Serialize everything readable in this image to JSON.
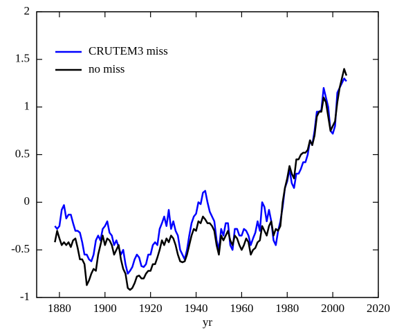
{
  "chart_data": {
    "type": "line",
    "x_label": "yr",
    "x": [
      1878,
      1879,
      1880,
      1881,
      1882,
      1883,
      1884,
      1885,
      1886,
      1887,
      1888,
      1889,
      1890,
      1891,
      1892,
      1893,
      1894,
      1895,
      1896,
      1897,
      1898,
      1899,
      1900,
      1901,
      1902,
      1903,
      1904,
      1905,
      1906,
      1907,
      1908,
      1909,
      1910,
      1911,
      1912,
      1913,
      1914,
      1915,
      1916,
      1917,
      1918,
      1919,
      1920,
      1921,
      1922,
      1923,
      1924,
      1925,
      1926,
      1927,
      1928,
      1929,
      1930,
      1931,
      1932,
      1933,
      1934,
      1935,
      1936,
      1937,
      1938,
      1939,
      1940,
      1941,
      1942,
      1943,
      1944,
      1945,
      1946,
      1947,
      1948,
      1949,
      1950,
      1951,
      1952,
      1953,
      1954,
      1955,
      1956,
      1957,
      1958,
      1959,
      1960,
      1961,
      1962,
      1963,
      1964,
      1965,
      1966,
      1967,
      1968,
      1969,
      1970,
      1971,
      1972,
      1973,
      1974,
      1975,
      1976,
      1977,
      1978,
      1979,
      1980,
      1981,
      1982,
      1983,
      1984,
      1985,
      1986,
      1987,
      1988,
      1989,
      1990,
      1991,
      1992,
      1993,
      1994,
      1995,
      1996,
      1997,
      1998,
      1999,
      2000,
      2001,
      2002,
      2003,
      2004,
      2005,
      2006
    ],
    "series": [
      {
        "name": "CRUTEM3 miss",
        "color": "#0000ff",
        "values": [
          -0.25,
          -0.28,
          -0.25,
          -0.08,
          -0.03,
          -0.17,
          -0.13,
          -0.13,
          -0.22,
          -0.3,
          -0.3,
          -0.32,
          -0.42,
          -0.55,
          -0.55,
          -0.6,
          -0.62,
          -0.55,
          -0.4,
          -0.35,
          -0.4,
          -0.28,
          -0.25,
          -0.2,
          -0.32,
          -0.35,
          -0.45,
          -0.4,
          -0.47,
          -0.55,
          -0.5,
          -0.65,
          -0.75,
          -0.72,
          -0.68,
          -0.6,
          -0.55,
          -0.58,
          -0.67,
          -0.68,
          -0.65,
          -0.55,
          -0.55,
          -0.45,
          -0.42,
          -0.45,
          -0.28,
          -0.22,
          -0.15,
          -0.25,
          -0.08,
          -0.28,
          -0.2,
          -0.3,
          -0.35,
          -0.5,
          -0.55,
          -0.6,
          -0.5,
          -0.35,
          -0.22,
          -0.15,
          -0.12,
          0.0,
          -0.02,
          0.1,
          0.12,
          0.0,
          -0.1,
          -0.15,
          -0.2,
          -0.4,
          -0.5,
          -0.28,
          -0.35,
          -0.22,
          -0.22,
          -0.45,
          -0.5,
          -0.28,
          -0.28,
          -0.35,
          -0.35,
          -0.28,
          -0.3,
          -0.35,
          -0.45,
          -0.38,
          -0.32,
          -0.2,
          -0.3,
          0.0,
          -0.05,
          -0.2,
          -0.08,
          -0.2,
          -0.4,
          -0.45,
          -0.3,
          -0.2,
          -0.05,
          0.15,
          0.22,
          0.35,
          0.2,
          0.15,
          0.3,
          0.3,
          0.35,
          0.42,
          0.42,
          0.5,
          0.65,
          0.6,
          0.75,
          0.95,
          0.95,
          0.97,
          1.2,
          1.1,
          1.0,
          0.75,
          0.72,
          0.8,
          1.15,
          1.2,
          1.25,
          1.3,
          1.27
        ]
      },
      {
        "name": "no miss",
        "color": "#000000",
        "values": [
          -0.42,
          -0.3,
          -0.38,
          -0.45,
          -0.42,
          -0.45,
          -0.42,
          -0.47,
          -0.4,
          -0.38,
          -0.48,
          -0.6,
          -0.6,
          -0.65,
          -0.87,
          -0.82,
          -0.75,
          -0.7,
          -0.72,
          -0.55,
          -0.45,
          -0.35,
          -0.45,
          -0.38,
          -0.4,
          -0.45,
          -0.55,
          -0.5,
          -0.45,
          -0.6,
          -0.7,
          -0.75,
          -0.9,
          -0.92,
          -0.9,
          -0.85,
          -0.78,
          -0.77,
          -0.8,
          -0.8,
          -0.75,
          -0.72,
          -0.72,
          -0.65,
          -0.65,
          -0.58,
          -0.5,
          -0.4,
          -0.45,
          -0.38,
          -0.42,
          -0.35,
          -0.38,
          -0.45,
          -0.55,
          -0.62,
          -0.63,
          -0.62,
          -0.55,
          -0.45,
          -0.35,
          -0.28,
          -0.3,
          -0.2,
          -0.22,
          -0.15,
          -0.18,
          -0.22,
          -0.22,
          -0.25,
          -0.3,
          -0.45,
          -0.55,
          -0.35,
          -0.4,
          -0.35,
          -0.3,
          -0.4,
          -0.45,
          -0.35,
          -0.38,
          -0.45,
          -0.5,
          -0.45,
          -0.38,
          -0.42,
          -0.55,
          -0.5,
          -0.48,
          -0.42,
          -0.4,
          -0.25,
          -0.3,
          -0.35,
          -0.25,
          -0.2,
          -0.35,
          -0.28,
          -0.3,
          -0.25,
          0.0,
          0.15,
          0.25,
          0.38,
          0.3,
          0.25,
          0.45,
          0.45,
          0.5,
          0.52,
          0.52,
          0.55,
          0.65,
          0.6,
          0.7,
          0.9,
          0.95,
          0.95,
          1.1,
          1.05,
          0.9,
          0.75,
          0.8,
          0.85,
          1.05,
          1.2,
          1.3,
          1.4,
          1.33
        ]
      }
    ],
    "xlim": [
      1870,
      2020
    ],
    "xticks": [
      1880,
      1900,
      1920,
      1940,
      1960,
      1980,
      2000,
      2020
    ],
    "ylim": [
      -1,
      2
    ],
    "yticks": [
      -1,
      -0.5,
      0,
      0.5,
      1,
      1.5,
      2
    ],
    "legend": "upper left",
    "grid": false
  }
}
